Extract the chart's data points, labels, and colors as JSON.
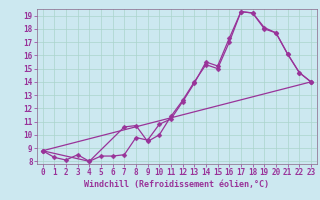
{
  "xlabel": "Windchill (Refroidissement éolien,°C)",
  "background_color": "#cce8f0",
  "grid_color": "#aad4cc",
  "line_color": "#993399",
  "spine_color": "#886688",
  "xlim_min": -0.5,
  "xlim_max": 23.5,
  "ylim_min": 7.8,
  "ylim_max": 19.5,
  "xticks": [
    0,
    1,
    2,
    3,
    4,
    5,
    6,
    7,
    8,
    9,
    10,
    11,
    12,
    13,
    14,
    15,
    16,
    17,
    18,
    19,
    20,
    21,
    22,
    23
  ],
  "yticks": [
    8,
    9,
    10,
    11,
    12,
    13,
    14,
    15,
    16,
    17,
    18,
    19
  ],
  "series1_x": [
    0,
    1,
    2,
    3,
    4,
    5,
    6,
    7,
    8,
    9,
    10,
    11,
    12,
    13,
    14,
    15,
    16,
    17,
    18,
    19,
    20,
    21,
    22,
    23
  ],
  "series1_y": [
    8.8,
    8.3,
    8.1,
    8.5,
    8.0,
    8.4,
    8.4,
    8.5,
    9.8,
    9.6,
    10.8,
    11.2,
    12.5,
    13.9,
    15.5,
    15.2,
    17.3,
    19.3,
    19.2,
    18.1,
    17.7,
    16.1,
    14.7,
    14.0
  ],
  "series2_x": [
    0,
    4,
    7,
    8,
    9,
    10,
    11,
    12,
    13,
    14,
    15,
    16,
    17,
    18,
    19,
    20,
    21,
    22,
    23
  ],
  "series2_y": [
    8.8,
    8.0,
    10.6,
    10.7,
    9.5,
    10.0,
    11.4,
    12.6,
    14.0,
    15.3,
    15.0,
    17.0,
    19.3,
    19.2,
    18.0,
    17.7,
    16.1,
    14.7,
    14.0
  ],
  "series3_x": [
    0,
    23
  ],
  "series3_y": [
    8.8,
    14.0
  ],
  "tick_fontsize": 5.5,
  "xlabel_fontsize": 6.0,
  "marker_size": 2.5,
  "linewidth": 0.9
}
